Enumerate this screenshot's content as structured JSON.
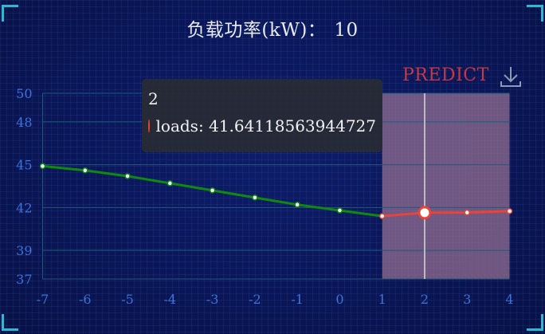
{
  "header": {
    "label": "负载功率(kW)：",
    "value": "10"
  },
  "predict_label": "PREDICT",
  "toolbar": {
    "download_icon": "download-icon"
  },
  "tooltip": {
    "title": "2",
    "series": "loads",
    "value": "41.64118563944727",
    "marker_color": "#e8443a"
  },
  "colors": {
    "history_line": "#0f8a0f",
    "predict_line": "#e8443a",
    "predict_region": "#8c6a8e",
    "axis_text": "#3f73d9",
    "grid": "#1e5a78"
  },
  "chart_data": {
    "type": "line",
    "x": [
      -7,
      -6,
      -5,
      -4,
      -3,
      -2,
      -1,
      0,
      1,
      2,
      3,
      4
    ],
    "series": [
      {
        "name": "loads",
        "x": [
          -7,
          -6,
          -5,
          -4,
          -3,
          -2,
          -1,
          0,
          1
        ],
        "values": [
          44.9,
          44.6,
          44.2,
          43.7,
          43.2,
          42.7,
          42.2,
          41.8,
          41.4
        ],
        "color": "#0f8a0f"
      },
      {
        "name": "loads",
        "x": [
          1,
          2,
          3,
          4
        ],
        "values": [
          41.4,
          41.64118563944727,
          41.65,
          41.75
        ],
        "color": "#e8443a"
      }
    ],
    "predict_region": [
      1,
      4
    ],
    "highlight_x": 2,
    "xlim": [
      -7,
      4
    ],
    "xticks": [
      -7,
      -6,
      -5,
      -4,
      -3,
      -2,
      -1,
      0,
      1,
      2,
      3,
      4
    ],
    "ylim": [
      37,
      50
    ],
    "yticks": [
      37,
      39,
      42,
      45,
      48,
      50
    ],
    "grid": true
  }
}
